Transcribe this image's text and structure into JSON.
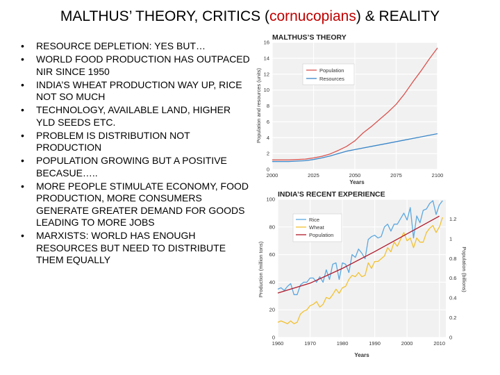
{
  "slide": {
    "title_part1": "MALTHUS’ THEORY, CRITICS (",
    "title_accent": "cornucopians",
    "title_part2": ") & REALITY",
    "accent_color": "#c00000",
    "bullet_glyph": "•",
    "bullets": [
      "RESOURCE DEPLETION: YES BUT…",
      "WORLD FOOD PRODUCTION HAS OUTPACED NIR SINCE 1950",
      "INDIA’S WHEAT PRODUCTION WAY UP, RICE NOT SO MUCH",
      "TECHNOLOGY, AVAILABLE LAND, HIGHER YLD SEEDS ETC.",
      "PROBLEM IS DISTRIBUTION NOT PRODUCTION",
      "POPULATION GROWING BUT A POSITIVE BECASUE…..",
      "MORE PEOPLE STIMULATE ECONOMY, FOOD PRODUCTION, MORE CONSUMERS GENERATE GREATER DEMAND FOR GOODS LEADING TO MORE JOBS",
      "MARXISTS: WORLD HAS ENOUGH RESOURCES BUT NEED TO DISTRIBUTE THEM EQUALLY"
    ]
  },
  "chart_data": [
    {
      "type": "line",
      "title": "MALTHUS’S THEORY",
      "xlabel": "Years",
      "ylabel": "Population and resources (units)",
      "xlim": [
        2000,
        2100
      ],
      "ylim": [
        0,
        16
      ],
      "xticks": [
        2000,
        2025,
        2050,
        2075,
        2100
      ],
      "yticks": [
        0,
        2,
        4,
        6,
        8,
        10,
        12,
        14,
        16
      ],
      "grid": true,
      "legend_position": "top-left",
      "series": [
        {
          "name": "Population",
          "color": "#d9534f",
          "x": [
            2000,
            2010,
            2020,
            2025,
            2030,
            2035,
            2040,
            2045,
            2050,
            2055,
            2060,
            2065,
            2070,
            2075,
            2080,
            2085,
            2090,
            2095,
            2100
          ],
          "y": [
            1.2,
            1.2,
            1.3,
            1.45,
            1.65,
            1.95,
            2.4,
            2.9,
            3.6,
            4.6,
            5.4,
            6.3,
            7.2,
            8.2,
            9.5,
            11.0,
            12.4,
            13.9,
            15.3
          ]
        },
        {
          "name": "Resources",
          "color": "#3a86c8",
          "x": [
            2000,
            2010,
            2020,
            2025,
            2030,
            2035,
            2040,
            2045,
            2050,
            2060,
            2070,
            2080,
            2090,
            2100
          ],
          "y": [
            1.0,
            1.0,
            1.1,
            1.25,
            1.45,
            1.7,
            2.0,
            2.3,
            2.5,
            2.9,
            3.3,
            3.7,
            4.1,
            4.5
          ]
        }
      ]
    },
    {
      "type": "line",
      "title": "INDIA’S RECENT EXPERIENCE",
      "xlabel": "Years",
      "ylabel": "Production (million tons)",
      "y2label": "Population (billions)",
      "xlim": [
        1960,
        2012
      ],
      "ylim": [
        0,
        100
      ],
      "y2lim": [
        0,
        1.4
      ],
      "xticks": [
        1960,
        1970,
        1980,
        1990,
        2000,
        2010
      ],
      "yticks": [
        0,
        20,
        40,
        60,
        80,
        100
      ],
      "y2ticks": [
        0,
        0.2,
        0.4,
        0.6,
        0.8,
        1.0,
        1.2
      ],
      "grid": true,
      "legend_position": "top-left",
      "series": [
        {
          "name": "Rice",
          "color": "#5aa7e0",
          "axis": "left",
          "x": [
            1960,
            1961,
            1962,
            1963,
            1964,
            1965,
            1966,
            1967,
            1968,
            1969,
            1970,
            1971,
            1972,
            1973,
            1974,
            1975,
            1976,
            1977,
            1978,
            1979,
            1980,
            1981,
            1982,
            1983,
            1984,
            1985,
            1986,
            1987,
            1988,
            1989,
            1990,
            1991,
            1992,
            1993,
            1994,
            1995,
            1996,
            1997,
            1998,
            1999,
            2000,
            2001,
            2002,
            2003,
            2004,
            2005,
            2006,
            2007,
            2008,
            2009,
            2010,
            2011
          ],
          "y": [
            35,
            36,
            34,
            37,
            39,
            31,
            31,
            38,
            40,
            40,
            43,
            43,
            40,
            44,
            40,
            49,
            42,
            53,
            54,
            42,
            54,
            53,
            47,
            60,
            58,
            64,
            61,
            57,
            71,
            73,
            74,
            72,
            73,
            80,
            82,
            77,
            82,
            82,
            86,
            90,
            85,
            94,
            72,
            88,
            83,
            92,
            93,
            97,
            99,
            89,
            96,
            99
          ]
        },
        {
          "name": "Wheat",
          "color": "#f2c12e",
          "axis": "left",
          "x": [
            1960,
            1961,
            1962,
            1963,
            1964,
            1965,
            1966,
            1967,
            1968,
            1969,
            1970,
            1971,
            1972,
            1973,
            1974,
            1975,
            1976,
            1977,
            1978,
            1979,
            1980,
            1981,
            1982,
            1983,
            1984,
            1985,
            1986,
            1987,
            1988,
            1989,
            1990,
            1991,
            1992,
            1993,
            1994,
            1995,
            1996,
            1997,
            1998,
            1999,
            2000,
            2001,
            2002,
            2003,
            2004,
            2005,
            2006,
            2007,
            2008,
            2009,
            2010,
            2011
          ],
          "y": [
            11,
            12,
            11,
            10,
            12,
            10,
            11,
            17,
            19,
            20,
            23,
            24,
            26,
            22,
            24,
            29,
            28,
            31,
            35,
            32,
            36,
            37,
            42,
            45,
            44,
            47,
            44,
            45,
            54,
            50,
            55,
            55,
            57,
            59,
            65,
            62,
            69,
            66,
            71,
            76,
            70,
            72,
            65,
            72,
            69,
            69,
            76,
            79,
            81,
            76,
            80,
            87
          ]
        },
        {
          "name": "Population",
          "color": "#b0182a",
          "axis": "right",
          "x": [
            1960,
            1970,
            1980,
            1990,
            2000,
            2010
          ],
          "y": [
            0.45,
            0.55,
            0.7,
            0.87,
            1.05,
            1.23
          ]
        }
      ]
    }
  ]
}
